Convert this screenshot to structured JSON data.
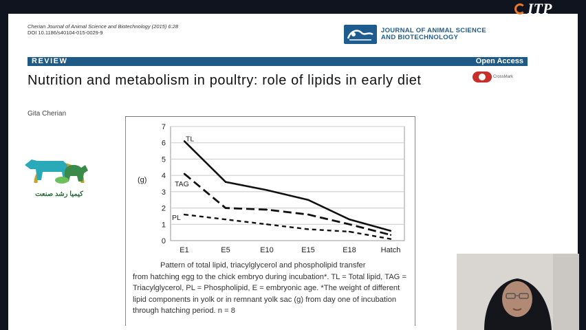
{
  "overlay": {
    "logo_text": "ITP"
  },
  "paper": {
    "citation": "Cherian Journal of Animal Science and Biotechnology (2015) 6:28",
    "doi": "DOI 10.1186/s40104-015-0029-9",
    "journal_line1": "JOURNAL OF ANIMAL SCIENCE",
    "journal_line2": "AND BIOTECHNOLOGY",
    "section": "REVIEW",
    "access": "Open Access",
    "title": "Nutrition and metabolism in poultry: role of lipids in early diet",
    "crossmark": "CrossMark",
    "author": "Gita Cherian"
  },
  "watermark": {
    "text": "کیمیا رشد صنعت"
  },
  "figure": {
    "caption_line1": "Pattern of total lipid, triacylglycerol and phospholipid transfer",
    "caption_rest": "from hatching egg to the chick embryo during incubation*. TL = Total lipid, TAG = Triacylglycerol, PL = Phospholipid, E = embryonic age. *The weight of different lipid components in yolk or in remnant yolk sac (g) from day one of incubation through hatching period. n = 8"
  },
  "chart_data": {
    "type": "line",
    "ylabel": "(g)",
    "ylim": [
      0,
      7
    ],
    "yticks": [
      "0",
      "1",
      "2",
      "3",
      "4",
      "5",
      "6",
      "7"
    ],
    "categories": [
      "E1",
      "E5",
      "E10",
      "E15",
      "E18",
      "Hatch"
    ],
    "grid": true,
    "series": [
      {
        "name": "TL",
        "style": "solid",
        "values": [
          6.1,
          3.6,
          3.1,
          2.5,
          1.3,
          0.6
        ]
      },
      {
        "name": "TAG",
        "style": "dashed",
        "values": [
          4.1,
          2.0,
          1.9,
          1.6,
          1.0,
          0.35
        ]
      },
      {
        "name": "PL",
        "style": "dotted",
        "values": [
          1.6,
          1.3,
          1.0,
          0.7,
          0.55,
          0.1
        ]
      }
    ]
  }
}
